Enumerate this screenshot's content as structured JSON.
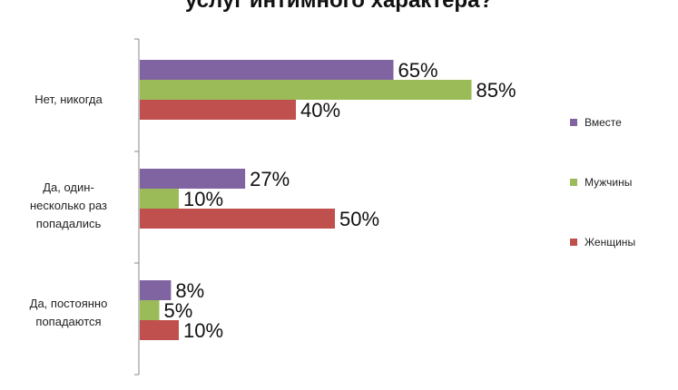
{
  "chart_data": {
    "type": "bar",
    "orientation": "horizontal",
    "title": "услуг интимного характера?",
    "categories": [
      "Нет, никогда",
      "Да, один-несколько раз попадались",
      "Да, постоянно попадаются"
    ],
    "category_label_lines": [
      [
        "Нет, никогда"
      ],
      [
        "Да, один-",
        "несколько раз",
        "попадались"
      ],
      [
        "Да, постоянно",
        "попадаются"
      ]
    ],
    "series": [
      {
        "name": "Вместе",
        "color": "#8064a2",
        "values": [
          65,
          27,
          8
        ],
        "labels": [
          "65%",
          "27%",
          "8%"
        ]
      },
      {
        "name": "Мужчины",
        "color": "#9bbb59",
        "values": [
          85,
          10,
          5
        ],
        "labels": [
          "85%",
          "10%",
          "5%"
        ]
      },
      {
        "name": "Женщины",
        "color": "#c0504d",
        "values": [
          40,
          50,
          10
        ],
        "labels": [
          "40%",
          "50%",
          "10%"
        ]
      }
    ],
    "xlim": [
      0,
      100
    ],
    "grid": false,
    "legend_position": "right"
  }
}
